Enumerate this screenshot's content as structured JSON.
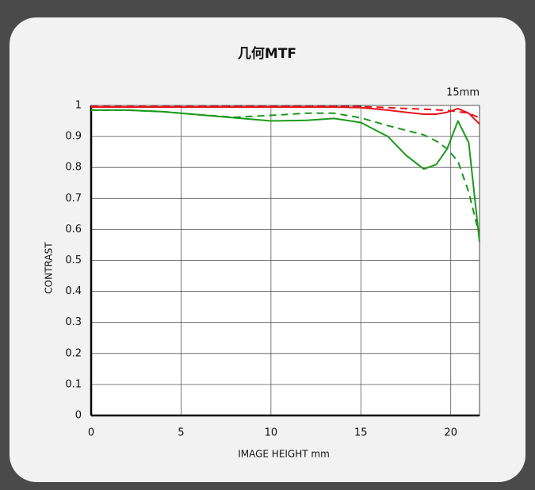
{
  "chart_data": {
    "type": "line",
    "title": "几何MTF",
    "annotation": "15mm",
    "xlabel": "IMAGE HEIGHT   mm",
    "ylabel": "CONTRAST",
    "x": [
      0,
      2,
      4,
      6,
      8,
      10,
      12,
      13.5,
      15,
      16.5,
      17.5,
      18.5,
      19.2,
      19.8,
      20.4,
      21,
      21.6
    ],
    "series": [
      {
        "color": "#1a9a1a",
        "dash": true,
        "values": [
          0.985,
          0.985,
          0.98,
          0.97,
          0.962,
          0.968,
          0.975,
          0.975,
          0.96,
          0.935,
          0.92,
          0.905,
          0.885,
          0.86,
          0.82,
          0.72,
          0.58
        ]
      },
      {
        "color": "#1a9a1a",
        "dash": false,
        "values": [
          0.985,
          0.985,
          0.98,
          0.97,
          0.96,
          0.95,
          0.952,
          0.958,
          0.945,
          0.9,
          0.84,
          0.795,
          0.81,
          0.86,
          0.95,
          0.88,
          0.56
        ]
      },
      {
        "color": "#111111",
        "dash": true,
        "values": [
          null,
          null,
          null,
          0.997,
          0.997,
          0.997,
          0.997,
          0.997,
          0.997,
          null,
          null,
          null,
          null,
          null,
          null,
          null,
          null
        ]
      },
      {
        "color": "#e8141c",
        "dash": true,
        "values": [
          0.997,
          0.997,
          0.997,
          0.997,
          0.997,
          0.997,
          0.997,
          0.997,
          0.996,
          0.993,
          0.99,
          0.988,
          0.986,
          0.984,
          0.98,
          0.975,
          0.96
        ]
      },
      {
        "color": "#e8141c",
        "dash": false,
        "values": [
          0.995,
          0.995,
          0.995,
          0.995,
          0.995,
          0.995,
          0.995,
          0.995,
          0.993,
          0.985,
          0.978,
          0.972,
          0.972,
          0.978,
          0.99,
          0.975,
          0.94
        ]
      }
    ],
    "xlim": [
      0,
      21.6
    ],
    "xticks": [
      0,
      5,
      10,
      15,
      20
    ],
    "ylim": [
      0,
      1
    ],
    "yticks": [
      0,
      0.1,
      0.2,
      0.3,
      0.4,
      0.5,
      0.6,
      0.7,
      0.8,
      0.9,
      1
    ],
    "grid": true
  }
}
